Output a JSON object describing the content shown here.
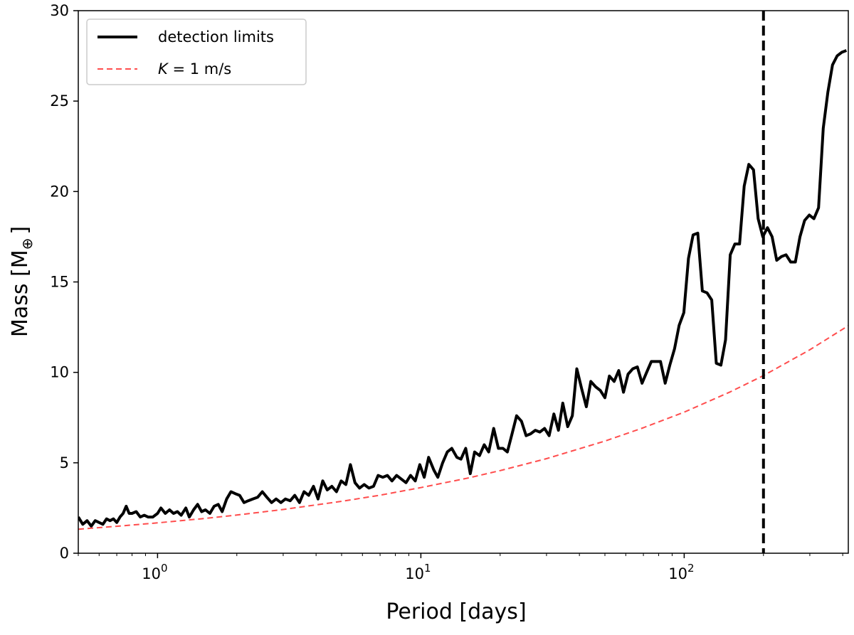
{
  "chart_data": {
    "type": "line",
    "xlabel": "Period [days]",
    "ylabel_main": "Mass [M",
    "ylabel_sub": "⊕",
    "ylabel_close": "]",
    "x_scale": "log",
    "xlim": [
      0.5,
      420
    ],
    "ylim": [
      0,
      30
    ],
    "y_ticks": [
      0,
      5,
      10,
      15,
      20,
      25,
      30
    ],
    "x_ticks": [
      {
        "value": 1,
        "base": "10",
        "exp": "0"
      },
      {
        "value": 10,
        "base": "10",
        "exp": "1"
      },
      {
        "value": 100,
        "base": "10",
        "exp": "2"
      }
    ],
    "legend": {
      "placement": "upper-left",
      "entries": [
        {
          "label": "detection limits",
          "color": "#000000",
          "style": "solid"
        },
        {
          "label_italic": "K",
          "label_rest": " = 1 m/s",
          "color": "#ff4d4d",
          "style": "dashed"
        }
      ]
    },
    "vertical_line": {
      "x": 200,
      "color": "#000000",
      "style": "dashed"
    },
    "series": [
      {
        "name": "detection limits",
        "color": "#000000",
        "style": "solid",
        "points": [
          [
            0.5,
            2.0
          ],
          [
            0.52,
            1.6
          ],
          [
            0.54,
            1.8
          ],
          [
            0.56,
            1.5
          ],
          [
            0.58,
            1.8
          ],
          [
            0.6,
            1.7
          ],
          [
            0.62,
            1.6
          ],
          [
            0.64,
            1.9
          ],
          [
            0.66,
            1.8
          ],
          [
            0.68,
            1.9
          ],
          [
            0.7,
            1.7
          ],
          [
            0.72,
            2.0
          ],
          [
            0.74,
            2.2
          ],
          [
            0.76,
            2.6
          ],
          [
            0.78,
            2.2
          ],
          [
            0.8,
            2.2
          ],
          [
            0.83,
            2.3
          ],
          [
            0.86,
            2.0
          ],
          [
            0.89,
            2.1
          ],
          [
            0.92,
            2.0
          ],
          [
            0.96,
            2.0
          ],
          [
            1.0,
            2.2
          ],
          [
            1.03,
            2.5
          ],
          [
            1.07,
            2.2
          ],
          [
            1.11,
            2.4
          ],
          [
            1.15,
            2.2
          ],
          [
            1.19,
            2.3
          ],
          [
            1.23,
            2.1
          ],
          [
            1.28,
            2.5
          ],
          [
            1.32,
            2.0
          ],
          [
            1.37,
            2.4
          ],
          [
            1.42,
            2.7
          ],
          [
            1.47,
            2.3
          ],
          [
            1.52,
            2.4
          ],
          [
            1.58,
            2.2
          ],
          [
            1.64,
            2.6
          ],
          [
            1.7,
            2.7
          ],
          [
            1.76,
            2.3
          ],
          [
            1.83,
            3.0
          ],
          [
            1.9,
            3.4
          ],
          [
            1.97,
            3.3
          ],
          [
            2.05,
            3.2
          ],
          [
            2.13,
            2.8
          ],
          [
            2.21,
            2.9
          ],
          [
            2.3,
            3.0
          ],
          [
            2.4,
            3.1
          ],
          [
            2.5,
            3.4
          ],
          [
            2.6,
            3.1
          ],
          [
            2.71,
            2.8
          ],
          [
            2.82,
            3.0
          ],
          [
            2.94,
            2.8
          ],
          [
            3.06,
            3.0
          ],
          [
            3.19,
            2.9
          ],
          [
            3.32,
            3.2
          ],
          [
            3.46,
            2.8
          ],
          [
            3.6,
            3.4
          ],
          [
            3.75,
            3.2
          ],
          [
            3.91,
            3.7
          ],
          [
            4.07,
            3.0
          ],
          [
            4.24,
            4.0
          ],
          [
            4.41,
            3.5
          ],
          [
            4.59,
            3.7
          ],
          [
            4.78,
            3.4
          ],
          [
            4.98,
            4.0
          ],
          [
            5.19,
            3.8
          ],
          [
            5.4,
            4.9
          ],
          [
            5.62,
            3.9
          ],
          [
            5.85,
            3.6
          ],
          [
            6.09,
            3.8
          ],
          [
            6.35,
            3.6
          ],
          [
            6.61,
            3.7
          ],
          [
            6.88,
            4.3
          ],
          [
            7.17,
            4.2
          ],
          [
            7.46,
            4.3
          ],
          [
            7.77,
            4.0
          ],
          [
            8.09,
            4.3
          ],
          [
            8.43,
            4.1
          ],
          [
            8.78,
            3.9
          ],
          [
            9.14,
            4.3
          ],
          [
            9.52,
            4.0
          ],
          [
            9.91,
            4.9
          ],
          [
            10.3,
            4.2
          ],
          [
            10.7,
            5.3
          ],
          [
            11.2,
            4.6
          ],
          [
            11.6,
            4.2
          ],
          [
            12.1,
            5.0
          ],
          [
            12.6,
            5.6
          ],
          [
            13.1,
            5.8
          ],
          [
            13.7,
            5.3
          ],
          [
            14.2,
            5.2
          ],
          [
            14.8,
            5.8
          ],
          [
            15.4,
            4.4
          ],
          [
            16.0,
            5.6
          ],
          [
            16.7,
            5.4
          ],
          [
            17.4,
            6.0
          ],
          [
            18.1,
            5.6
          ],
          [
            18.9,
            6.9
          ],
          [
            19.7,
            5.8
          ],
          [
            20.5,
            5.8
          ],
          [
            21.3,
            5.6
          ],
          [
            22.2,
            6.6
          ],
          [
            23.1,
            7.6
          ],
          [
            24.1,
            7.3
          ],
          [
            25.1,
            6.5
          ],
          [
            26.1,
            6.6
          ],
          [
            27.2,
            6.8
          ],
          [
            28.3,
            6.7
          ],
          [
            29.5,
            6.9
          ],
          [
            30.7,
            6.5
          ],
          [
            32.0,
            7.7
          ],
          [
            33.3,
            6.8
          ],
          [
            34.6,
            8.3
          ],
          [
            36.1,
            7.0
          ],
          [
            37.6,
            7.6
          ],
          [
            39.1,
            10.2
          ],
          [
            40.8,
            9.1
          ],
          [
            42.5,
            8.1
          ],
          [
            44.2,
            9.5
          ],
          [
            46.1,
            9.2
          ],
          [
            48.0,
            9.0
          ],
          [
            50.0,
            8.6
          ],
          [
            52.0,
            9.8
          ],
          [
            54.2,
            9.5
          ],
          [
            56.4,
            10.1
          ],
          [
            58.8,
            8.9
          ],
          [
            61.2,
            9.9
          ],
          [
            63.8,
            10.2
          ],
          [
            66.4,
            10.3
          ],
          [
            69.2,
            9.4
          ],
          [
            72.0,
            10.0
          ],
          [
            75.0,
            10.6
          ],
          [
            78.1,
            10.6
          ],
          [
            81.3,
            10.6
          ],
          [
            84.7,
            9.4
          ],
          [
            88.2,
            10.4
          ],
          [
            91.9,
            11.3
          ],
          [
            95.7,
            12.6
          ],
          [
            99.7,
            13.3
          ],
          [
            103.8,
            16.3
          ],
          [
            108.1,
            17.6
          ],
          [
            112.6,
            17.7
          ],
          [
            117.2,
            14.5
          ],
          [
            122.1,
            14.4
          ],
          [
            127.2,
            14.0
          ],
          [
            132.4,
            10.5
          ],
          [
            137.9,
            10.4
          ],
          [
            143.6,
            11.8
          ],
          [
            149.6,
            16.5
          ],
          [
            155.8,
            17.1
          ],
          [
            162.3,
            17.1
          ],
          [
            169.0,
            20.3
          ],
          [
            176.0,
            21.5
          ],
          [
            183.3,
            21.2
          ],
          [
            190.9,
            18.5
          ],
          [
            198.8,
            17.5
          ],
          [
            207.1,
            18.0
          ],
          [
            215.7,
            17.5
          ],
          [
            224.6,
            16.2
          ],
          [
            233.9,
            16.4
          ],
          [
            243.6,
            16.5
          ],
          [
            253.7,
            16.1
          ],
          [
            264.3,
            16.1
          ],
          [
            275.2,
            17.5
          ],
          [
            286.7,
            18.4
          ],
          [
            298.6,
            18.7
          ],
          [
            311.0,
            18.5
          ],
          [
            323.9,
            19.1
          ],
          [
            337.3,
            23.5
          ],
          [
            351.3,
            25.5
          ],
          [
            365.9,
            27.0
          ],
          [
            381.0,
            27.5
          ],
          [
            396.9,
            27.7
          ],
          [
            413.3,
            27.8
          ]
        ]
      },
      {
        "name": "K = 1 m/s",
        "color": "#ff4d4d",
        "style": "dashed",
        "formula_note": "",
        "points": [
          [
            0.5,
            1.33
          ],
          [
            0.7,
            1.49
          ],
          [
            1,
            1.68
          ],
          [
            1.5,
            1.92
          ],
          [
            2,
            2.11
          ],
          [
            3,
            2.42
          ],
          [
            5,
            2.87
          ],
          [
            7,
            3.21
          ],
          [
            10,
            3.63
          ],
          [
            15,
            4.15
          ],
          [
            20,
            4.57
          ],
          [
            30,
            5.23
          ],
          [
            50,
            6.2
          ],
          [
            70,
            6.94
          ],
          [
            100,
            7.8
          ],
          [
            150,
            8.93
          ],
          [
            200,
            9.82
          ],
          [
            300,
            11.25
          ],
          [
            420,
            12.58
          ]
        ]
      }
    ]
  },
  "colors": {
    "axis": "#000000",
    "detection": "#000000",
    "k_curve": "#ff4d4d",
    "legend_border": "#cccccc"
  }
}
